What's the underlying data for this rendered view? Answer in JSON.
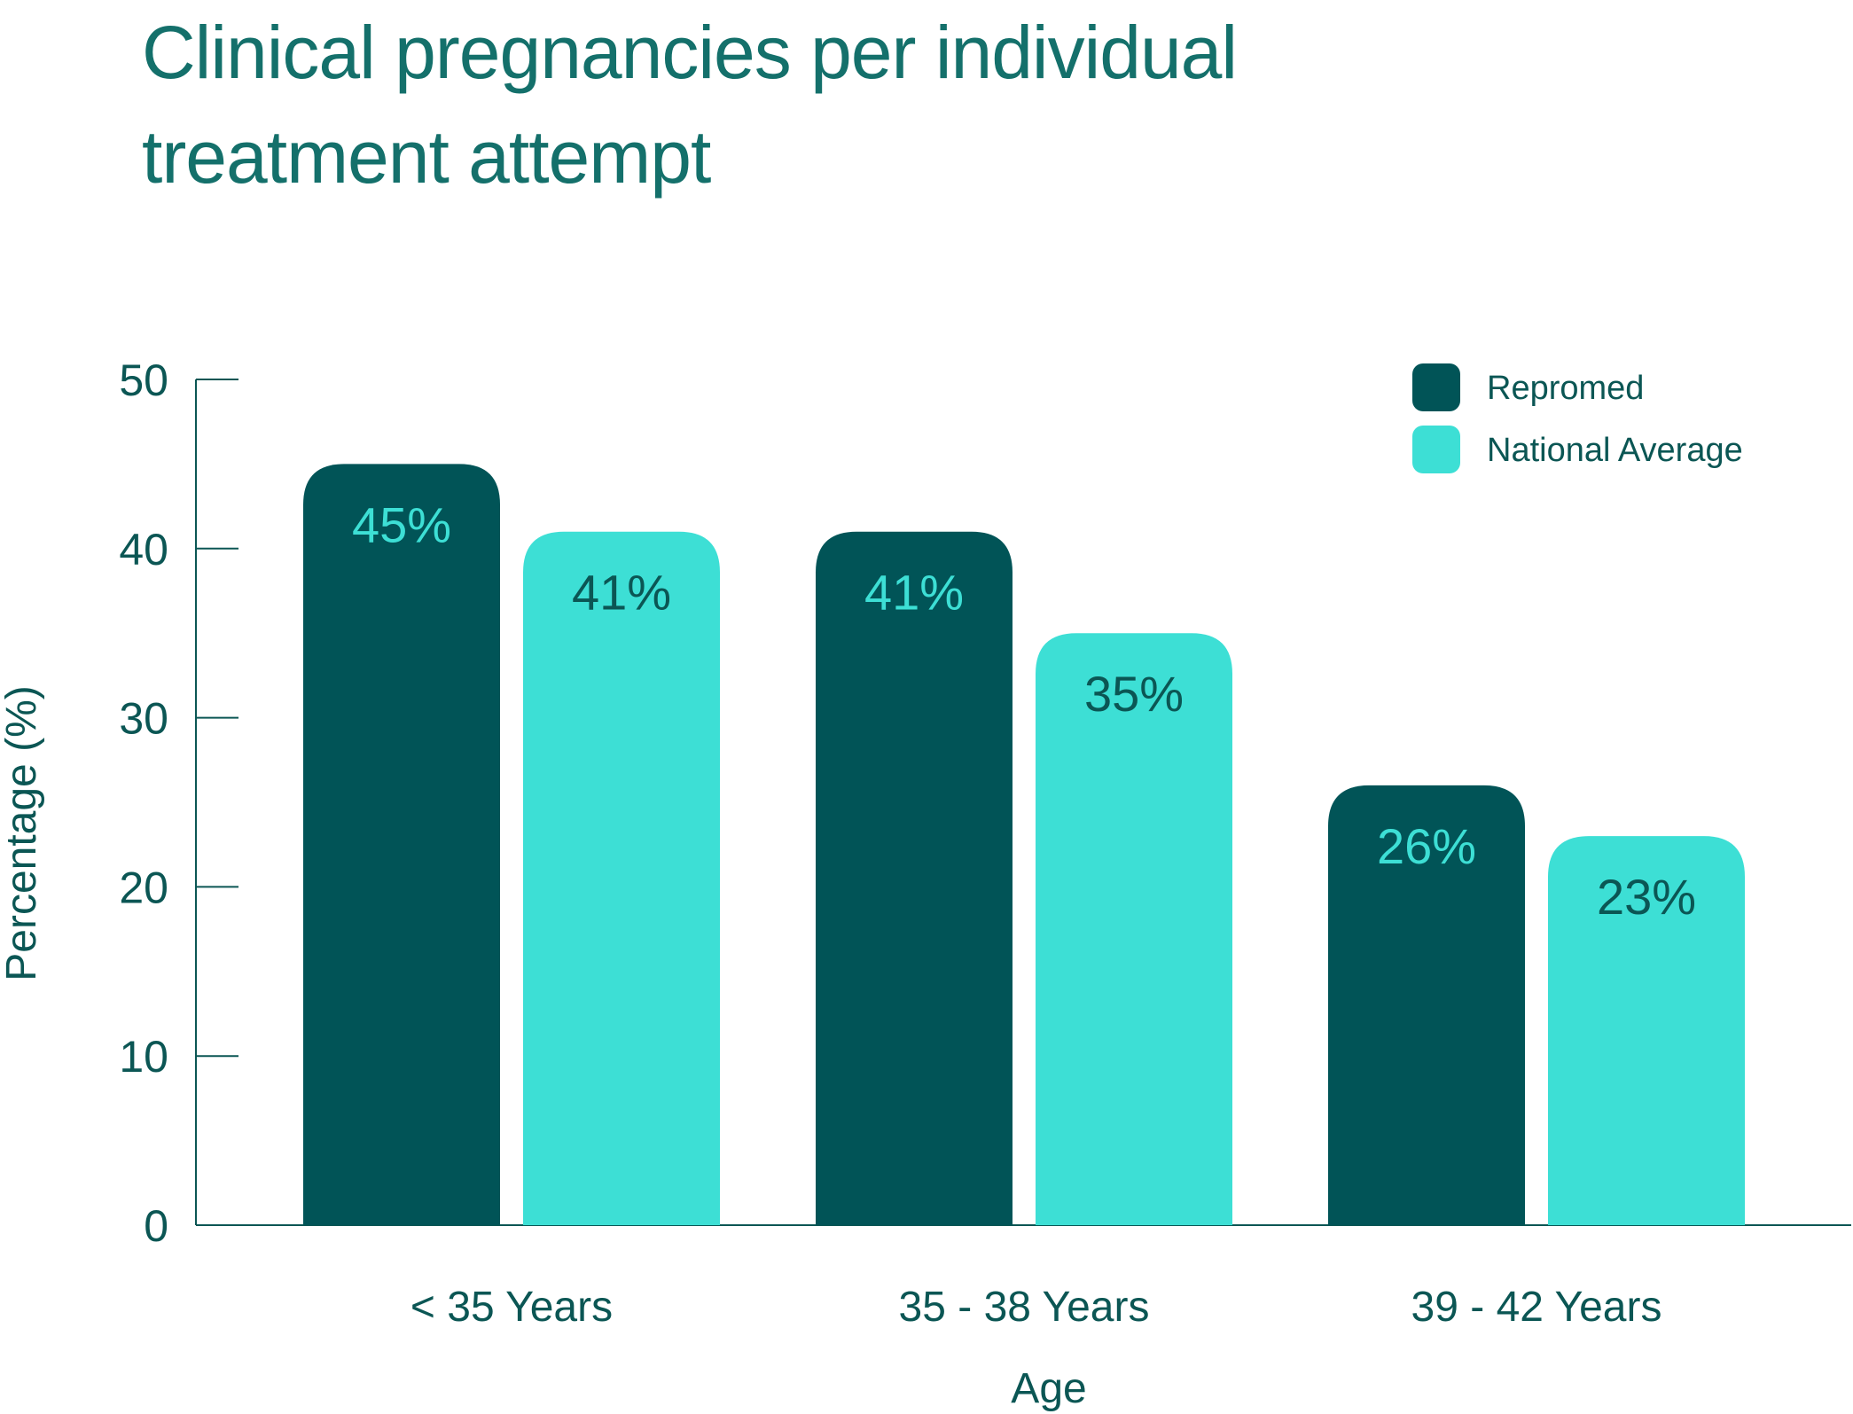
{
  "colors": {
    "title": "#14706b",
    "text": "#0b5654",
    "axis": "#0b5654",
    "repromed": "#015457",
    "national": "#3ddfd5"
  },
  "chart_data": {
    "type": "bar",
    "title": "Clinical pregnancies per individual treatment attempt",
    "xlabel": "Age",
    "ylabel": "Percentage (%)",
    "ylim": [
      0,
      50
    ],
    "yticks": [
      0,
      10,
      20,
      30,
      40,
      50
    ],
    "grid": false,
    "legend_position": "top-right",
    "categories": [
      "< 35 Years",
      "35 - 38 Years",
      "39 - 42 Years"
    ],
    "series": [
      {
        "name": "Repromed",
        "values": [
          45,
          41,
          26
        ],
        "labels": [
          "45%",
          "41%",
          "26%"
        ],
        "color": "#015457",
        "label_color": "#3ddfd5"
      },
      {
        "name": "National Average",
        "values": [
          41,
          35,
          23
        ],
        "labels": [
          "41%",
          "35%",
          "23%"
        ],
        "color": "#3ddfd5",
        "label_color": "#0b5654"
      }
    ]
  }
}
